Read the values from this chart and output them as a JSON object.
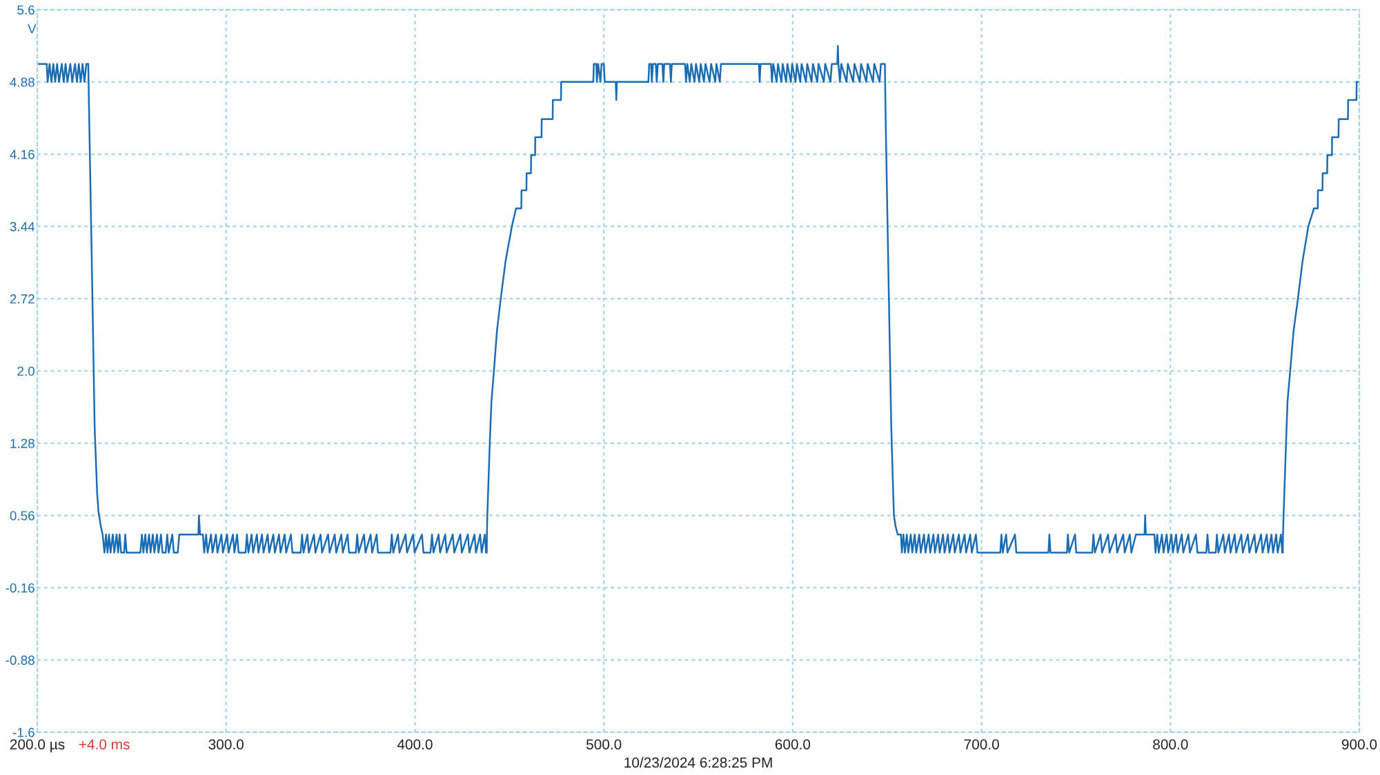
{
  "chart_data": {
    "type": "line",
    "xlabel": "10/23/2024 6:28:25 PM",
    "ylabel": "V",
    "annotations": [
      "+4.0 ms"
    ],
    "xlim": [
      200,
      900
    ],
    "ylim": [
      -1.6,
      5.6
    ],
    "xticks": [
      {
        "value": 200,
        "label": "200.0 µs"
      },
      {
        "value": 300,
        "label": "300.0"
      },
      {
        "value": 400,
        "label": "400.0"
      },
      {
        "value": 500,
        "label": "500.0"
      },
      {
        "value": 600,
        "label": "600.0"
      },
      {
        "value": 700,
        "label": "700.0"
      },
      {
        "value": 800,
        "label": "800.0"
      },
      {
        "value": 900,
        "label": "900.0"
      }
    ],
    "yticks": [
      5.6,
      4.88,
      4.16,
      3.44,
      2.72,
      {
        "value": 2,
        "label": "2.0"
      },
      1.28,
      0.56,
      -0.16,
      -0.88,
      -1.6
    ],
    "grid": true,
    "x": [
      200,
      205,
      205.5,
      206.5,
      207.5,
      208.5,
      209.5,
      210.5,
      211.5,
      213,
      214,
      215,
      216,
      217.5,
      218.5,
      220,
      221,
      222,
      223,
      224,
      225,
      226,
      227,
      227.5,
      229.1,
      230.4,
      231.7,
      232.4,
      233.7,
      234.6,
      235.6,
      236.4,
      237.2,
      238,
      238.8,
      240,
      240.8,
      242,
      242.8,
      243.6,
      244.4,
      246,
      246.6,
      247.3,
      254.6,
      255.4,
      256.2,
      257.2,
      258,
      259.2,
      260,
      261.2,
      262,
      263.4,
      264.2,
      265.5,
      266.3,
      268,
      268.8,
      269.6,
      271.5,
      272.3,
      274.4,
      275.2,
      285.3,
      285.6,
      286.2,
      287.7,
      288.4,
      289.4,
      290.2,
      292,
      292.8,
      294.6,
      295.4,
      297.5,
      298.3,
      300.5,
      301.3,
      303.6,
      304.4,
      305.8,
      306.6,
      310.3,
      311,
      311.8,
      313.5,
      314.3,
      316.3,
      317.1,
      319,
      319.8,
      322,
      322.8,
      325,
      325.8,
      328,
      328.8,
      331,
      331.8,
      334.3,
      335.1,
      339.5,
      340.2,
      341,
      343,
      343.8,
      346.5,
      347.3,
      350,
      350.8,
      354,
      354.8,
      357.5,
      358.3,
      361,
      361.8,
      364.3,
      365.1,
      368.7,
      369.4,
      370.2,
      373,
      373.8,
      376.5,
      377.3,
      379.7,
      380.4,
      387,
      387.7,
      388.5,
      391,
      391.8,
      395,
      395.8,
      399,
      399.8,
      403.7,
      404.5,
      408.2,
      409,
      409.8,
      412.5,
      413.3,
      416,
      416.8,
      420,
      420.8,
      424,
      424.8,
      428,
      428.8,
      431.5,
      432.3,
      434.5,
      435.3,
      437,
      437.6,
      438,
      438.1,
      438.3,
      439.6,
      440.5,
      441.8,
      443.4,
      445.4,
      448,
      451.3,
      453.5,
      456.3,
      456.4,
      459,
      459.1,
      461.4,
      461.5,
      463.6,
      463.7,
      467,
      467.1,
      472.9,
      473,
      477.3,
      477.4,
      494.4,
      494.7,
      496,
      496.3,
      497,
      498.2,
      498.8,
      500,
      500.5,
      506.3,
      506.6,
      506.9,
      523.6,
      524,
      525,
      525.4,
      526,
      527.5,
      528,
      528.6,
      531,
      531.5,
      532,
      535,
      535.5,
      536,
      543,
      543.5,
      544.2,
      545.5,
      546.3,
      548,
      548.8,
      550.5,
      551.3,
      553,
      553.8,
      556,
      556.8,
      559,
      559.6,
      561.4,
      562,
      582.1,
      582.5,
      583,
      588.5,
      589,
      589.7,
      591.5,
      592.2,
      594,
      594.7,
      596.5,
      597.2,
      599,
      599.7,
      601.5,
      602.2,
      604,
      604.7,
      607,
      607.7,
      610,
      610.7,
      613,
      613.7,
      616.5,
      617.2,
      620,
      620.7,
      623.6,
      623.9,
      624.2,
      625,
      625.7,
      628.5,
      629.2,
      632,
      632.7,
      635.5,
      636.2,
      639,
      639.7,
      642.5,
      643.2,
      646,
      646.7,
      648.8,
      649.2,
      650.8,
      652.2,
      653.2,
      653.6,
      654.5,
      655.6,
      657.3,
      657.8,
      658.6,
      659.4,
      660.4,
      661.2,
      662.5,
      663.3,
      664.6,
      665.4,
      667,
      667.8,
      669.5,
      670.3,
      672,
      672.8,
      674.5,
      675.3,
      677,
      677.8,
      679.6,
      680.4,
      682.2,
      683,
      685,
      685.8,
      688,
      688.8,
      691,
      691.8,
      694,
      694.8,
      697,
      697.8,
      709.9,
      710.5,
      711.2,
      713,
      713.7,
      717.7,
      718.4,
      735.4,
      735.9,
      736.5,
      745.2,
      745.7,
      746.4,
      749.5,
      750.1,
      758.6,
      759.2,
      760,
      763,
      763.8,
      767,
      767.8,
      771,
      771.8,
      775,
      775.8,
      778.5,
      779.3,
      781.7,
      786.3,
      786.6,
      787,
      791.5,
      792.1,
      793,
      793.8,
      795.5,
      796.3,
      798,
      798.8,
      800.5,
      801.3,
      803,
      803.8,
      806,
      806.8,
      809.5,
      810.3,
      813.5,
      814.3,
      819,
      819.6,
      820.4,
      824,
      824.6,
      825.4,
      828,
      828.8,
      831,
      831.8,
      834,
      834.8,
      837.5,
      838.3,
      841,
      841.8,
      844.5,
      845.3,
      848,
      848.8,
      851,
      851.8,
      853.5,
      854.3,
      856,
      856.8,
      858.5,
      859.2,
      859.5,
      859.6,
      859.9,
      861.2,
      862,
      863.4,
      865.2,
      867.5,
      870,
      873,
      876,
      878,
      878.1,
      880.5,
      880.6,
      883,
      883.1,
      885.5,
      885.6,
      889,
      889.1,
      894,
      894.1,
      898.5,
      898.6,
      900
    ],
    "series": [
      {
        "color": "#1a6db4",
        "values": [
          5.06,
          5.06,
          4.88,
          5.06,
          4.88,
          5.06,
          4.88,
          5.06,
          4.88,
          5.06,
          4.88,
          5.06,
          4.88,
          5.06,
          4.88,
          5.06,
          4.88,
          5.06,
          4.88,
          5.06,
          4.88,
          5.06,
          5.06,
          4.52,
          2.85,
          1.43,
          0.79,
          0.6,
          0.45,
          0.37,
          0.19,
          0.37,
          0.19,
          0.37,
          0.19,
          0.37,
          0.19,
          0.37,
          0.19,
          0.37,
          0.19,
          0.19,
          0.37,
          0.19,
          0.19,
          0.37,
          0.19,
          0.37,
          0.19,
          0.37,
          0.19,
          0.37,
          0.19,
          0.37,
          0.19,
          0.37,
          0.19,
          0.19,
          0.37,
          0.19,
          0.37,
          0.19,
          0.19,
          0.37,
          0.37,
          0.56,
          0.37,
          0.37,
          0.19,
          0.37,
          0.19,
          0.37,
          0.19,
          0.37,
          0.19,
          0.37,
          0.19,
          0.37,
          0.19,
          0.37,
          0.19,
          0.37,
          0.19,
          0.19,
          0.37,
          0.19,
          0.37,
          0.19,
          0.37,
          0.19,
          0.37,
          0.19,
          0.37,
          0.19,
          0.37,
          0.19,
          0.37,
          0.19,
          0.37,
          0.19,
          0.37,
          0.19,
          0.19,
          0.37,
          0.19,
          0.37,
          0.19,
          0.37,
          0.19,
          0.37,
          0.19,
          0.37,
          0.19,
          0.37,
          0.19,
          0.37,
          0.19,
          0.37,
          0.19,
          0.19,
          0.37,
          0.19,
          0.37,
          0.19,
          0.37,
          0.19,
          0.37,
          0.19,
          0.19,
          0.37,
          0.19,
          0.37,
          0.19,
          0.37,
          0.19,
          0.37,
          0.19,
          0.37,
          0.19,
          0.19,
          0.37,
          0.19,
          0.37,
          0.19,
          0.37,
          0.19,
          0.37,
          0.19,
          0.37,
          0.19,
          0.37,
          0.19,
          0.37,
          0.19,
          0.37,
          0.19,
          0.37,
          0.19,
          0.19,
          0.37,
          0.56,
          1.28,
          1.7,
          2,
          2.4,
          2.72,
          3.1,
          3.44,
          3.62,
          3.62,
          3.8,
          3.8,
          3.97,
          3.97,
          4.15,
          4.15,
          4.33,
          4.33,
          4.51,
          4.51,
          4.7,
          4.7,
          4.88,
          4.88,
          5.06,
          5.06,
          4.88,
          5.06,
          4.88,
          5.06,
          5.06,
          4.88,
          4.88,
          4.7,
          4.88,
          4.88,
          5.06,
          5.06,
          4.88,
          5.06,
          5.06,
          4.88,
          5.06,
          5.06,
          4.88,
          5.06,
          5.06,
          4.88,
          5.06,
          5.06,
          4.88,
          5.06,
          4.88,
          5.06,
          4.88,
          5.06,
          4.88,
          5.06,
          4.88,
          5.06,
          4.88,
          5.06,
          4.88,
          5.06,
          4.88,
          5.06,
          5.06,
          4.88,
          5.06,
          5.06,
          4.88,
          5.06,
          4.88,
          5.06,
          4.88,
          5.06,
          4.88,
          5.06,
          4.88,
          5.06,
          4.88,
          5.06,
          4.88,
          5.06,
          4.88,
          5.06,
          4.88,
          5.06,
          4.88,
          5.06,
          4.88,
          5.06,
          4.88,
          5.06,
          5.06,
          5.24,
          5.06,
          4.88,
          5.06,
          4.88,
          5.06,
          4.88,
          5.06,
          4.88,
          5.06,
          4.88,
          5.06,
          4.88,
          5.06,
          4.88,
          5.06,
          5.06,
          4.52,
          2.85,
          1.43,
          0.79,
          0.56,
          0.45,
          0.37,
          0.37,
          0.19,
          0.37,
          0.19,
          0.37,
          0.19,
          0.37,
          0.19,
          0.37,
          0.19,
          0.37,
          0.19,
          0.37,
          0.19,
          0.37,
          0.19,
          0.37,
          0.19,
          0.37,
          0.19,
          0.37,
          0.19,
          0.37,
          0.19,
          0.37,
          0.19,
          0.37,
          0.19,
          0.37,
          0.19,
          0.37,
          0.19,
          0.37,
          0.19,
          0.19,
          0.37,
          0.19,
          0.37,
          0.19,
          0.37,
          0.19,
          0.19,
          0.37,
          0.19,
          0.19,
          0.37,
          0.19,
          0.37,
          0.19,
          0.19,
          0.37,
          0.19,
          0.37,
          0.19,
          0.37,
          0.19,
          0.37,
          0.19,
          0.37,
          0.19,
          0.37,
          0.19,
          0.37,
          0.37,
          0.56,
          0.37,
          0.37,
          0.19,
          0.37,
          0.19,
          0.37,
          0.19,
          0.37,
          0.19,
          0.37,
          0.19,
          0.37,
          0.19,
          0.37,
          0.19,
          0.37,
          0.19,
          0.37,
          0.19,
          0.19,
          0.37,
          0.19,
          0.19,
          0.37,
          0.19,
          0.37,
          0.19,
          0.37,
          0.19,
          0.37,
          0.19,
          0.37,
          0.19,
          0.37,
          0.19,
          0.37,
          0.19,
          0.37,
          0.19,
          0.37,
          0.19,
          0.37,
          0.19,
          0.37,
          0.19,
          0.37,
          0.19,
          0.19,
          0.37,
          0.56,
          1.28,
          1.7,
          2,
          2.4,
          2.72,
          3.1,
          3.44,
          3.62,
          3.62,
          3.8,
          3.8,
          3.97,
          3.97,
          4.15,
          4.15,
          4.33,
          4.33,
          4.51,
          4.51,
          4.7,
          4.7,
          4.88,
          4.88
        ]
      }
    ]
  }
}
